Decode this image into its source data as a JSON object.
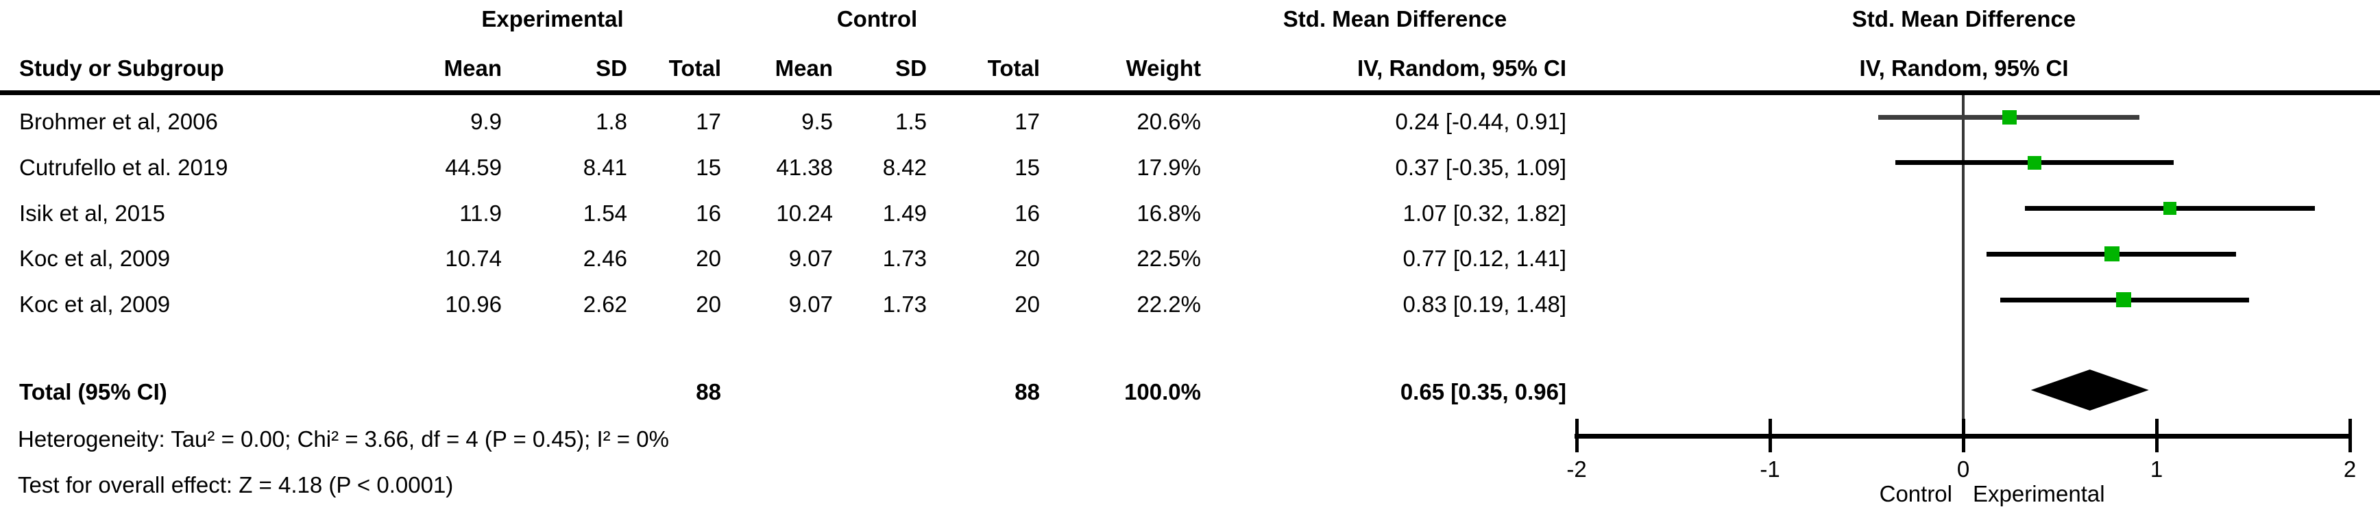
{
  "table": {
    "group_headers": {
      "experimental": "Experimental",
      "control": "Control",
      "smd_left": "Std. Mean Difference",
      "smd_right": "Std. Mean Difference"
    },
    "col_headers": {
      "study": "Study or Subgroup",
      "mean_e": "Mean",
      "sd_e": "SD",
      "total_e": "Total",
      "mean_c": "Mean",
      "sd_c": "SD",
      "total_c": "Total",
      "weight": "Weight",
      "iv": "IV, Random, 95% CI",
      "iv_right": "IV, Random, 95% CI"
    },
    "rows": [
      {
        "study": "Brohmer et al, 2006",
        "mean_e": "9.9",
        "sd_e": "1.8",
        "total_e": "17",
        "mean_c": "9.5",
        "sd_c": "1.5",
        "total_c": "17",
        "weight": "20.6%",
        "iv": "0.24 [-0.44, 0.91]"
      },
      {
        "study": "Cutrufello et al. 2019",
        "mean_e": "44.59",
        "sd_e": "8.41",
        "total_e": "15",
        "mean_c": "41.38",
        "sd_c": "8.42",
        "total_c": "15",
        "weight": "17.9%",
        "iv": "0.37 [-0.35, 1.09]"
      },
      {
        "study": "Isik et al, 2015",
        "mean_e": "11.9",
        "sd_e": "1.54",
        "total_e": "16",
        "mean_c": "10.24",
        "sd_c": "1.49",
        "total_c": "16",
        "weight": "16.8%",
        "iv": "1.07 [0.32, 1.82]"
      },
      {
        "study": "Koc et al, 2009",
        "mean_e": "10.74",
        "sd_e": "2.46",
        "total_e": "20",
        "mean_c": "9.07",
        "sd_c": "1.73",
        "total_c": "20",
        "weight": "22.5%",
        "iv": "0.77 [0.12, 1.41]"
      },
      {
        "study": "Koc et al, 2009",
        "mean_e": "10.96",
        "sd_e": "2.62",
        "total_e": "20",
        "mean_c": "9.07",
        "sd_c": "1.73",
        "total_c": "20",
        "weight": "22.2%",
        "iv": "0.83 [0.19, 1.48]"
      }
    ],
    "total_row": {
      "label": "Total (95% CI)",
      "total_e": "88",
      "total_c": "88",
      "weight": "100.0%",
      "iv": "0.65 [0.35, 0.96]"
    },
    "heterogeneity": "Heterogeneity: Tau² = 0.00; Chi² = 3.66, df = 4 (P = 0.45); I² = 0%",
    "overall_effect": "Test for overall effect: Z = 4.18 (P < 0.0001)"
  },
  "chart_data": {
    "type": "forest",
    "effect_measure": "Std. Mean Difference",
    "model": "IV, Random, 95% CI",
    "axis": {
      "min": -2,
      "max": 2,
      "ticks": [
        -2,
        -1,
        0,
        1,
        2
      ]
    },
    "favours_left": "Control",
    "favours_right": "Experimental",
    "studies": [
      {
        "name": "Brohmer et al, 2006",
        "effect": 0.24,
        "ci_low": -0.44,
        "ci_high": 0.91,
        "weight": 20.6,
        "line_color": "#3d3d3d"
      },
      {
        "name": "Cutrufello et al. 2019",
        "effect": 0.37,
        "ci_low": -0.35,
        "ci_high": 1.09,
        "weight": 17.9,
        "line_color": "#000000"
      },
      {
        "name": "Isik et al, 2015",
        "effect": 1.07,
        "ci_low": 0.32,
        "ci_high": 1.82,
        "weight": 16.8,
        "line_color": "#000000"
      },
      {
        "name": "Koc et al, 2009",
        "effect": 0.77,
        "ci_low": 0.12,
        "ci_high": 1.41,
        "weight": 22.5,
        "line_color": "#000000"
      },
      {
        "name": "Koc et al, 2009",
        "effect": 0.83,
        "ci_low": 0.19,
        "ci_high": 1.48,
        "weight": 22.2,
        "line_color": "#000000"
      }
    ],
    "total": {
      "effect": 0.65,
      "ci_low": 0.35,
      "ci_high": 0.96
    }
  },
  "colors": {
    "marker_green": "#00b400",
    "diamond_black": "#000000",
    "text": "#000000"
  }
}
